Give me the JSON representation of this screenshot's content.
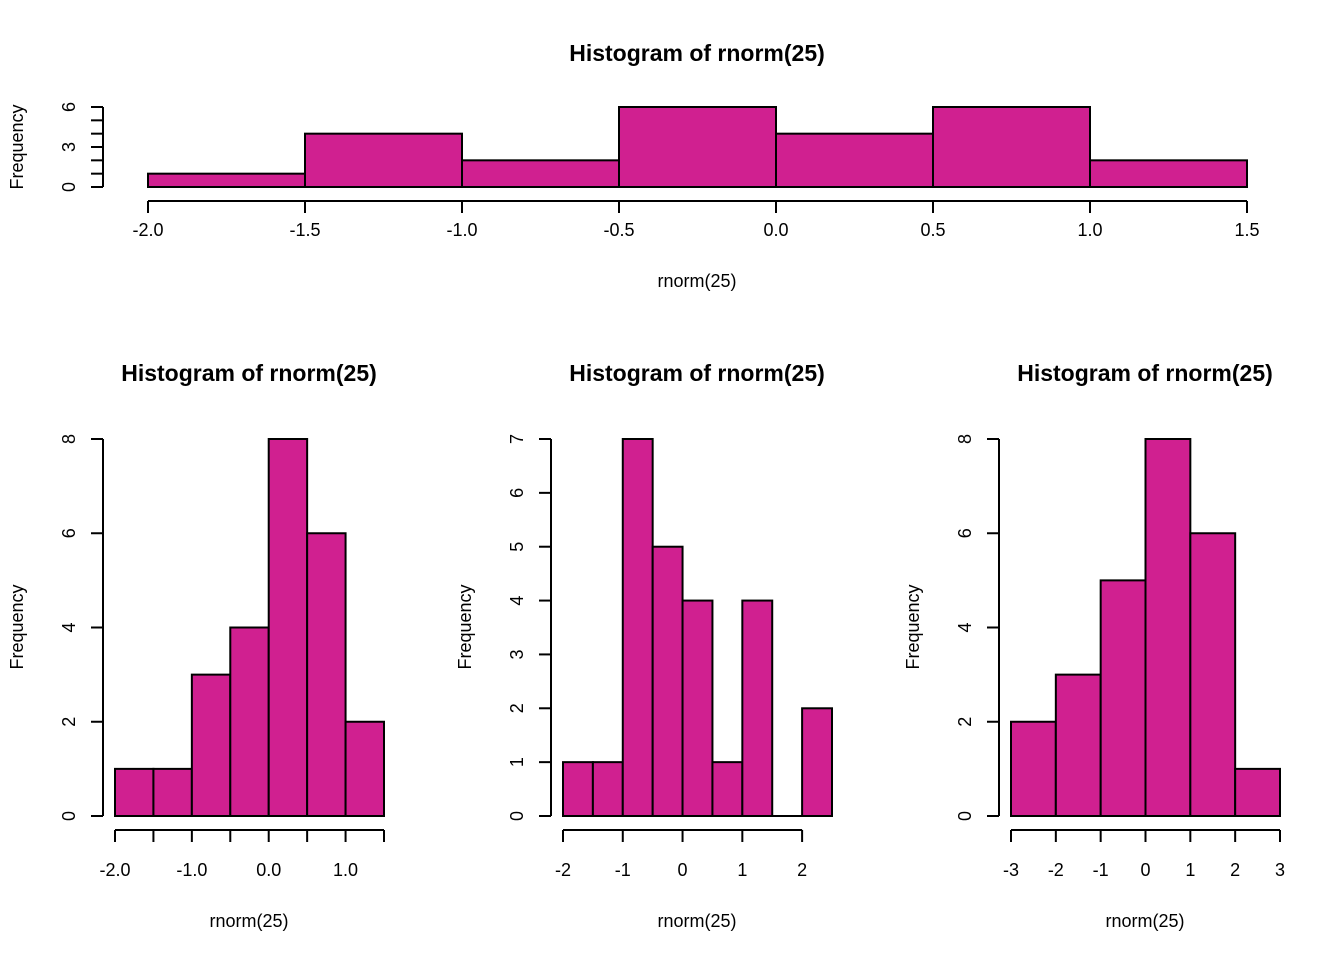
{
  "bar_fill": "#d02090",
  "bar_stroke": "#000000",
  "chart_data": [
    {
      "type": "bar",
      "subtype": "histogram",
      "title": "Histogram of rnorm(25)",
      "xlabel": "rnorm(25)",
      "ylabel": "Frequency",
      "breaks": [
        -2.0,
        -1.5,
        -1.0,
        -0.5,
        0.0,
        0.5,
        1.0,
        1.5
      ],
      "values": [
        1,
        4,
        2,
        6,
        4,
        6,
        2
      ],
      "xticks": [
        -2.0,
        -1.5,
        -1.0,
        -0.5,
        0.0,
        0.5,
        1.0,
        1.5
      ],
      "xtick_labels": [
        "-2.0",
        "-1.5",
        "-1.0",
        "-0.5",
        "0.0",
        "0.5",
        "1.0",
        "1.5"
      ],
      "yticks": [
        0,
        1,
        2,
        3,
        4,
        5,
        6
      ],
      "ytick_labels": [
        "0",
        "",
        "",
        "3",
        "",
        "",
        "6"
      ],
      "xlim": [
        -2.0,
        1.5
      ],
      "ylim": [
        0,
        6
      ],
      "grid": false
    },
    {
      "type": "bar",
      "subtype": "histogram",
      "title": "Histogram of rnorm(25)",
      "xlabel": "rnorm(25)",
      "ylabel": "Frequency",
      "breaks": [
        -2.0,
        -1.5,
        -1.0,
        -0.5,
        0.0,
        0.5,
        1.0,
        1.5
      ],
      "values": [
        1,
        1,
        3,
        4,
        8,
        6,
        2
      ],
      "xticks": [
        -2.0,
        -1.5,
        -1.0,
        -0.5,
        0.0,
        0.5,
        1.0,
        1.5
      ],
      "xtick_labels": [
        "-2.0",
        "",
        "-1.0",
        "",
        "0.0",
        "",
        "1.0",
        ""
      ],
      "yticks": [
        0,
        2,
        4,
        6,
        8
      ],
      "ytick_labels": [
        "0",
        "2",
        "4",
        "6",
        "8"
      ],
      "xlim": [
        -2.0,
        1.5
      ],
      "ylim": [
        0,
        8
      ],
      "grid": false
    },
    {
      "type": "bar",
      "subtype": "histogram",
      "title": "Histogram of rnorm(25)",
      "xlabel": "rnorm(25)",
      "ylabel": "Frequency",
      "breaks": [
        -2.0,
        -1.5,
        -1.0,
        -0.5,
        0.0,
        0.5,
        1.0,
        1.5,
        2.0,
        2.5
      ],
      "values": [
        1,
        1,
        7,
        5,
        4,
        1,
        4,
        0,
        2
      ],
      "xticks": [
        -2,
        -1,
        0,
        1,
        2
      ],
      "xtick_labels": [
        "-2",
        "-1",
        "0",
        "1",
        "2"
      ],
      "yticks": [
        0,
        1,
        2,
        3,
        4,
        5,
        6,
        7
      ],
      "ytick_labels": [
        "0",
        "1",
        "2",
        "3",
        "4",
        "5",
        "6",
        "7"
      ],
      "xlim": [
        -2.0,
        2.5
      ],
      "ylim": [
        0,
        7
      ],
      "grid": false
    },
    {
      "type": "bar",
      "subtype": "histogram",
      "title": "Histogram of rnorm(25)",
      "xlabel": "rnorm(25)",
      "ylabel": "Frequency",
      "breaks": [
        -3,
        -2,
        -1,
        0,
        1,
        2,
        3
      ],
      "values": [
        2,
        3,
        5,
        8,
        6,
        1
      ],
      "xticks": [
        -3,
        -2,
        -1,
        0,
        1,
        2,
        3
      ],
      "xtick_labels": [
        "-3",
        "-2",
        "-1",
        "0",
        "1",
        "2",
        "3"
      ],
      "yticks": [
        0,
        2,
        4,
        6,
        8
      ],
      "ytick_labels": [
        "0",
        "2",
        "4",
        "6",
        "8"
      ],
      "xlim": [
        -3,
        3
      ],
      "ylim": [
        0,
        8
      ],
      "grid": false
    }
  ]
}
